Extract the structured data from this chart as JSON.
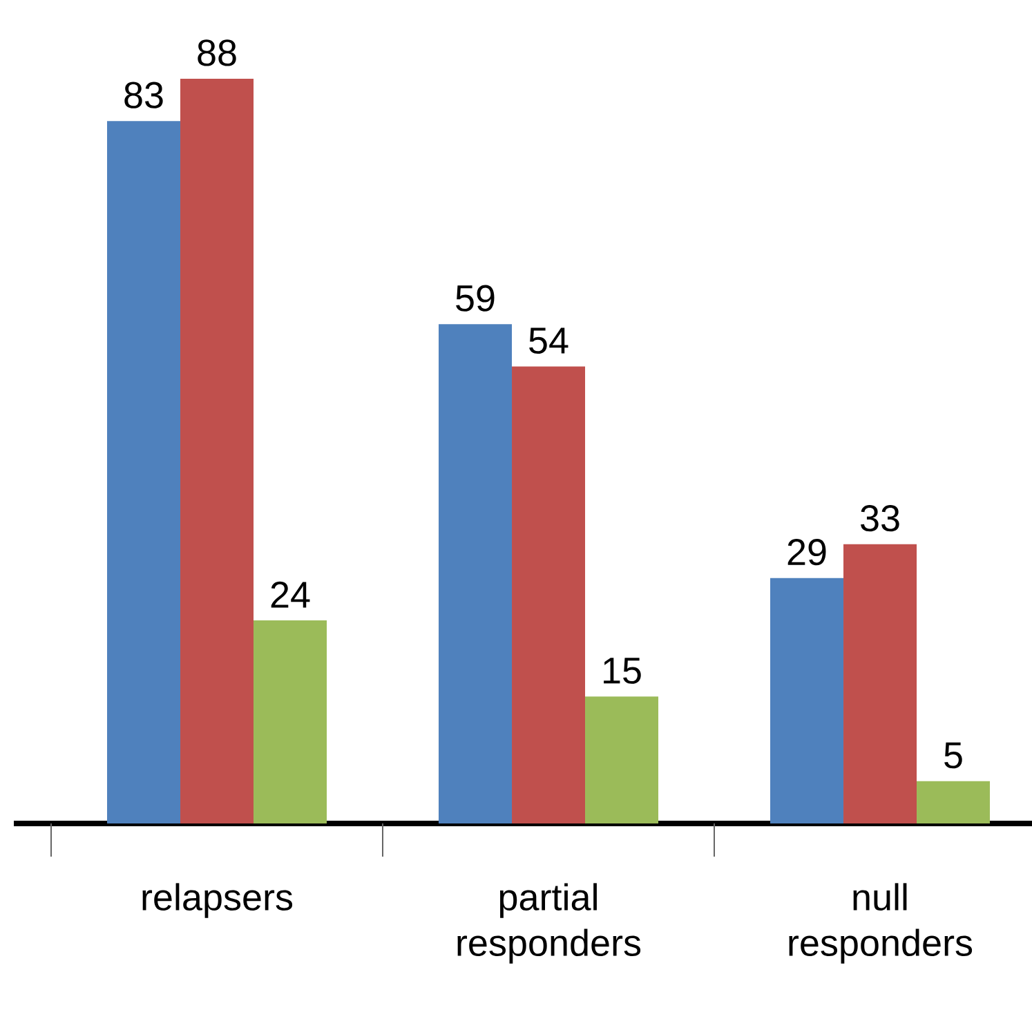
{
  "chart_data": {
    "type": "bar",
    "categories": [
      "relapsers",
      "partial responders",
      "null responders"
    ],
    "series": [
      {
        "color": "#4f81bd",
        "values": [
          83,
          59,
          29
        ]
      },
      {
        "color": "#c0504d",
        "values": [
          88,
          54,
          33
        ]
      },
      {
        "color": "#9bbb59",
        "values": [
          24,
          15,
          5
        ]
      }
    ],
    "data_labels": true
  }
}
